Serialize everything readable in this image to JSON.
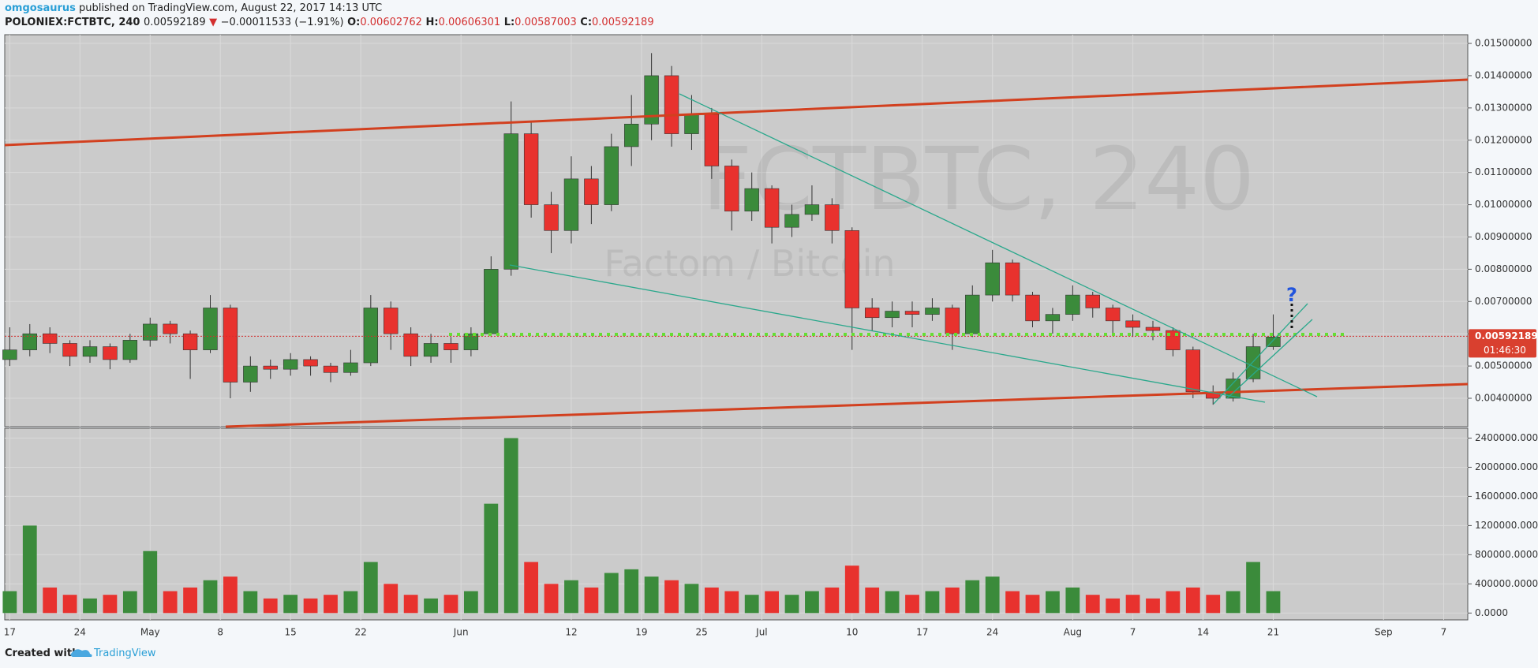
{
  "header": {
    "author": "omgosaurus",
    "published": "published on TradingView.com, August 22, 2017 14:13 UTC",
    "symbol": "POLONIEX:FCTBTC, 240",
    "change_arrow": "▼",
    "change": "−0.00011533 (−1.91%)",
    "o_label": "O:",
    "h_label": "H:",
    "l_label": "L:",
    "c_label": "C:"
  },
  "footer": {
    "created": "Created with",
    "brand": "TradingView"
  },
  "chart_data": {
    "type": "candlestick",
    "watermark": "FCTBTC, 240",
    "watermark_sub": "Factom / Bitcoin",
    "last_price": 0.00592189,
    "open_price": 0.00602762,
    "high_price": 0.00606301,
    "low_price": 0.00587003,
    "countdown": "01:46:30",
    "annotation": "?",
    "up_color": "#3b8b3b",
    "down_color": "#e8322e",
    "grid": true,
    "x": [
      0,
      2,
      4,
      6,
      8,
      10,
      12,
      14,
      16,
      18,
      20,
      22,
      24,
      26,
      28,
      30,
      32,
      34,
      36,
      38,
      40,
      42,
      44,
      46,
      48,
      50,
      52,
      54,
      56,
      58,
      60,
      62,
      64,
      66,
      68,
      70,
      72,
      74,
      76,
      78,
      80,
      82,
      84,
      86,
      88,
      90,
      92,
      94,
      96,
      98,
      100,
      102,
      104,
      106,
      108,
      110,
      112,
      114,
      116,
      118,
      120,
      122,
      124,
      126
    ],
    "open": [
      0.0052,
      0.0055,
      0.006,
      0.0057,
      0.0053,
      0.0056,
      0.0052,
      0.0058,
      0.0063,
      0.006,
      0.0055,
      0.0068,
      0.0045,
      0.005,
      0.0049,
      0.0052,
      0.005,
      0.0048,
      0.0051,
      0.0068,
      0.006,
      0.0053,
      0.0057,
      0.0055,
      0.006,
      0.008,
      0.0122,
      0.01,
      0.0092,
      0.0108,
      0.01,
      0.0118,
      0.0125,
      0.014,
      0.0122,
      0.0128,
      0.0112,
      0.0098,
      0.0105,
      0.0093,
      0.0097,
      0.01,
      0.0092,
      0.0068,
      0.0065,
      0.0067,
      0.0066,
      0.0068,
      0.006,
      0.0072,
      0.0082,
      0.0072,
      0.0064,
      0.0066,
      0.0072,
      0.0068,
      0.0064,
      0.0062,
      0.0061,
      0.0055,
      0.0042,
      0.004,
      0.0046,
      0.0056
    ],
    "high": [
      0.0062,
      0.0063,
      0.0062,
      0.0058,
      0.0058,
      0.0057,
      0.006,
      0.0065,
      0.0064,
      0.0061,
      0.0072,
      0.0069,
      0.0053,
      0.0052,
      0.0054,
      0.0053,
      0.0051,
      0.0055,
      0.0072,
      0.007,
      0.0062,
      0.006,
      0.0059,
      0.0062,
      0.0084,
      0.0132,
      0.0126,
      0.0104,
      0.0115,
      0.0112,
      0.0122,
      0.0134,
      0.0147,
      0.0143,
      0.0134,
      0.013,
      0.0114,
      0.011,
      0.0106,
      0.01,
      0.0106,
      0.0102,
      0.0093,
      0.0071,
      0.007,
      0.007,
      0.0071,
      0.0069,
      0.0075,
      0.0086,
      0.0083,
      0.0073,
      0.0068,
      0.0075,
      0.0073,
      0.0069,
      0.0066,
      0.0064,
      0.0062,
      0.0056,
      0.0044,
      0.0048,
      0.006,
      0.0066
    ],
    "low": [
      0.005,
      0.0053,
      0.0054,
      0.005,
      0.0051,
      0.0049,
      0.0051,
      0.0056,
      0.0057,
      0.0046,
      0.0054,
      0.004,
      0.0042,
      0.0046,
      0.0047,
      0.0047,
      0.0045,
      0.0047,
      0.005,
      0.0055,
      0.005,
      0.0051,
      0.0051,
      0.0053,
      0.0059,
      0.0078,
      0.0096,
      0.0085,
      0.0088,
      0.0094,
      0.0098,
      0.0112,
      0.012,
      0.0118,
      0.0117,
      0.0108,
      0.0092,
      0.0095,
      0.0088,
      0.009,
      0.0095,
      0.0088,
      0.0055,
      0.0061,
      0.0062,
      0.0062,
      0.0064,
      0.0055,
      0.0059,
      0.007,
      0.007,
      0.0062,
      0.006,
      0.0064,
      0.0065,
      0.006,
      0.0059,
      0.0058,
      0.0053,
      0.004,
      0.0038,
      0.0039,
      0.0045,
      0.0055
    ],
    "close": [
      0.0055,
      0.006,
      0.0057,
      0.0053,
      0.0056,
      0.0052,
      0.0058,
      0.0063,
      0.006,
      0.0055,
      0.0068,
      0.0045,
      0.005,
      0.0049,
      0.0052,
      0.005,
      0.0048,
      0.0051,
      0.0068,
      0.006,
      0.0053,
      0.0057,
      0.0055,
      0.006,
      0.008,
      0.0122,
      0.01,
      0.0092,
      0.0108,
      0.01,
      0.0118,
      0.0125,
      0.014,
      0.0122,
      0.0128,
      0.0112,
      0.0098,
      0.0105,
      0.0093,
      0.0097,
      0.01,
      0.0092,
      0.0068,
      0.0065,
      0.0067,
      0.0066,
      0.0068,
      0.006,
      0.0072,
      0.0082,
      0.0072,
      0.0064,
      0.0066,
      0.0072,
      0.0068,
      0.0064,
      0.0062,
      0.0061,
      0.0055,
      0.0042,
      0.004,
      0.0046,
      0.0056,
      0.0059
    ],
    "xlim": [
      -0.5,
      145.4
    ],
    "xticks": [
      {
        "value": 0,
        "label": "17"
      },
      {
        "value": 7,
        "label": "24"
      },
      {
        "value": 14,
        "label": "May"
      },
      {
        "value": 21,
        "label": "8"
      },
      {
        "value": 28,
        "label": "15"
      },
      {
        "value": 35,
        "label": "22"
      },
      {
        "value": 45,
        "label": "Jun"
      },
      {
        "value": 56,
        "label": "12"
      },
      {
        "value": 63,
        "label": "19"
      },
      {
        "value": 69,
        "label": "25"
      },
      {
        "value": 75,
        "label": "Jul"
      },
      {
        "value": 84,
        "label": "10"
      },
      {
        "value": 91,
        "label": "17"
      },
      {
        "value": 98,
        "label": "24"
      },
      {
        "value": 106,
        "label": "Aug"
      },
      {
        "value": 112,
        "label": "7"
      },
      {
        "value": 119,
        "label": "14"
      },
      {
        "value": 126,
        "label": "21"
      },
      {
        "value": 137,
        "label": "Sep"
      },
      {
        "value": 143,
        "label": "7"
      }
    ],
    "ylim": [
      0.00312,
      0.01527
    ],
    "yticks": [
      {
        "value": 0.004,
        "label": "0.00400000"
      },
      {
        "value": 0.005,
        "label": "0.00500000"
      },
      {
        "value": 0.006,
        "label": "0.00600000"
      },
      {
        "value": 0.007,
        "label": "0.00700000"
      },
      {
        "value": 0.008,
        "label": "0.00800000"
      },
      {
        "value": 0.009,
        "label": "0.00900000"
      },
      {
        "value": 0.01,
        "label": "0.01000000"
      },
      {
        "value": 0.011,
        "label": "0.01100000"
      },
      {
        "value": 0.012,
        "label": "0.01200000"
      },
      {
        "value": 0.013,
        "label": "0.01300000"
      },
      {
        "value": 0.014,
        "label": "0.01400000"
      },
      {
        "value": 0.015,
        "label": "0.01500000"
      }
    ],
    "volume": {
      "values": [
        300000,
        1200000,
        350000,
        250000,
        200000,
        250000,
        300000,
        850000,
        300000,
        350000,
        450000,
        500000,
        300000,
        200000,
        250000,
        200000,
        250000,
        300000,
        700000,
        400000,
        250000,
        200000,
        250000,
        300000,
        1500000,
        2400000,
        700000,
        400000,
        450000,
        350000,
        550000,
        600000,
        500000,
        450000,
        400000,
        350000,
        300000,
        250000,
        300000,
        250000,
        300000,
        350000,
        650000,
        350000,
        300000,
        250000,
        300000,
        350000,
        450000,
        500000,
        300000,
        250000,
        300000,
        350000,
        250000,
        200000,
        250000,
        200000,
        300000,
        350000,
        250000,
        300000,
        700000,
        300000
      ],
      "ylim": [
        -94000,
        2535000
      ],
      "yticks": [
        {
          "value": 0,
          "label": "0.0000"
        },
        {
          "value": 400000,
          "label": "400000.0000"
        },
        {
          "value": 800000,
          "label": "800000.0000"
        },
        {
          "value": 1200000,
          "label": "1200000.0000"
        },
        {
          "value": 1600000,
          "label": "1600000.0000"
        },
        {
          "value": 2000000,
          "label": "2000000.0000"
        },
        {
          "value": 2400000,
          "label": "2400000.0000"
        }
      ]
    }
  }
}
